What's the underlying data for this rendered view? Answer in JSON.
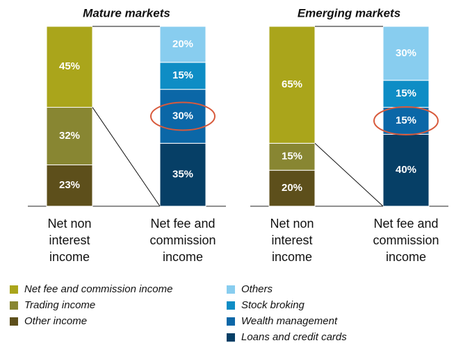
{
  "chart_data": {
    "type": "stacked_bar",
    "groups": [
      "Mature markets",
      "Emerging markets"
    ],
    "categories": [
      "Net non interest income",
      "Net fee and commission income",
      "Net non interest income",
      "Net fee and commission income"
    ],
    "ylim": [
      0,
      100
    ],
    "series": [
      {
        "name": "Net fee and commission income",
        "color": "#aaa51b",
        "values": [
          45,
          null,
          65,
          null
        ],
        "value_labels": [
          "45%",
          null,
          "65%",
          null
        ]
      },
      {
        "name": "Trading income",
        "color": "#888632",
        "values": [
          32,
          null,
          15,
          null
        ],
        "value_labels": [
          "32%",
          null,
          "15%",
          null
        ]
      },
      {
        "name": "Other income",
        "color": "#5d4f1b",
        "values": [
          23,
          null,
          20,
          null
        ],
        "value_labels": [
          "23%",
          null,
          "20%",
          null
        ]
      },
      {
        "name": "Others",
        "color": "#88cdef",
        "values": [
          null,
          20,
          null,
          30
        ],
        "value_labels": [
          null,
          "20%",
          null,
          "30%"
        ]
      },
      {
        "name": "Stock broking",
        "color": "#0e8dc5",
        "values": [
          null,
          15,
          null,
          15
        ],
        "value_labels": [
          null,
          "15%",
          null,
          "15%"
        ]
      },
      {
        "name": "Wealth management",
        "color": "#0b67a7",
        "values": [
          null,
          30,
          null,
          15
        ],
        "value_labels": [
          null,
          "30%",
          null,
          "15%"
        ]
      },
      {
        "name": "Loans and credit cards",
        "color": "#063f66",
        "values": [
          null,
          35,
          null,
          40
        ],
        "value_labels": [
          null,
          "35%",
          null,
          "40%"
        ]
      }
    ]
  }
}
